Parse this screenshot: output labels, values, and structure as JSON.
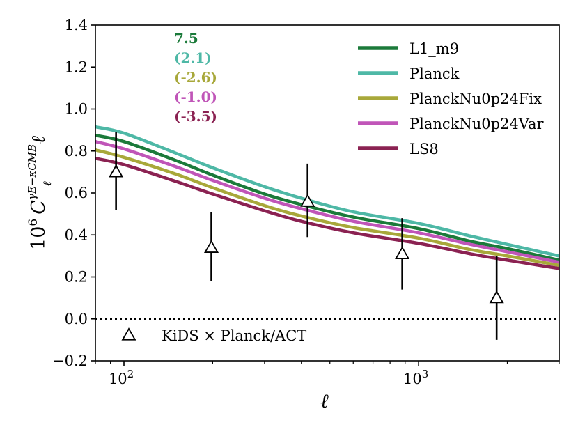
{
  "chart_data": {
    "type": "line",
    "xscale": "log",
    "xlim": [
      80,
      3000
    ],
    "ylim": [
      -0.2,
      1.4
    ],
    "xlabel": "ℓ",
    "ylabel": {
      "prefix": "10",
      "prefix_exp": "6",
      "symbol": "C",
      "sub": "ℓ",
      "sup": "γE−κCMB",
      "suffix": "ℓ"
    },
    "y_ticks": [
      -0.2,
      0.0,
      0.2,
      0.4,
      0.6,
      0.8,
      1.0,
      1.2,
      1.4
    ],
    "y_tick_labels": [
      "−0.2",
      "0.0",
      "0.2",
      "0.4",
      "0.6",
      "0.8",
      "1.0",
      "1.2",
      "1.4"
    ],
    "x_major_ticks": [
      100,
      1000
    ],
    "x_tick_labels": [
      {
        "base": "10",
        "exp": "2"
      },
      {
        "base": "10",
        "exp": "3"
      }
    ],
    "x_minor_ticks": [
      80,
      90,
      200,
      300,
      400,
      500,
      600,
      700,
      800,
      900,
      2000,
      3000
    ],
    "zero_line": 0.0,
    "series": [
      {
        "name": "L1_m9",
        "color": "#1b7a3a",
        "x": [
          80,
          100,
          150,
          200,
          300,
          400,
          600,
          1000,
          1500,
          2000,
          3000
        ],
        "y": [
          0.875,
          0.845,
          0.755,
          0.685,
          0.595,
          0.545,
          0.485,
          0.43,
          0.37,
          0.335,
          0.28
        ]
      },
      {
        "name": "Planck",
        "color": "#4eb8a6",
        "x": [
          80,
          100,
          150,
          200,
          300,
          400,
          600,
          1000,
          1500,
          2000,
          3000
        ],
        "y": [
          0.915,
          0.885,
          0.79,
          0.72,
          0.63,
          0.575,
          0.51,
          0.455,
          0.395,
          0.355,
          0.3
        ]
      },
      {
        "name": "PlanckNu0p24Fix",
        "color": "#a8a83a",
        "x": [
          80,
          100,
          150,
          200,
          300,
          400,
          600,
          1000,
          1500,
          2000,
          3000
        ],
        "y": [
          0.805,
          0.77,
          0.69,
          0.625,
          0.54,
          0.49,
          0.435,
          0.385,
          0.33,
          0.3,
          0.255
        ]
      },
      {
        "name": "PlanckNu0p24Var",
        "color": "#c055b8",
        "x": [
          80,
          100,
          150,
          200,
          300,
          400,
          600,
          1000,
          1500,
          2000,
          3000
        ],
        "y": [
          0.845,
          0.81,
          0.725,
          0.66,
          0.575,
          0.525,
          0.465,
          0.41,
          0.355,
          0.32,
          0.27
        ]
      },
      {
        "name": "LS8",
        "color": "#8b2252",
        "x": [
          80,
          100,
          150,
          200,
          300,
          400,
          600,
          1000,
          1500,
          2000,
          3000
        ],
        "y": [
          0.765,
          0.735,
          0.655,
          0.595,
          0.515,
          0.465,
          0.41,
          0.36,
          0.31,
          0.28,
          0.24
        ]
      }
    ],
    "data_points": {
      "name": "KiDS × Planck/ACT",
      "x": [
        94,
        198,
        420,
        880,
        1840
      ],
      "y": [
        0.7,
        0.34,
        0.56,
        0.31,
        0.1
      ],
      "yerr_low": [
        0.18,
        0.16,
        0.17,
        0.17,
        0.2
      ],
      "yerr_high": [
        0.19,
        0.17,
        0.18,
        0.17,
        0.2
      ]
    },
    "annotations": [
      {
        "text": "7.5",
        "color": "#1b7a3a"
      },
      {
        "text": "(2.1)",
        "color": "#4eb8a6"
      },
      {
        "text": "(-2.6)",
        "color": "#a8a83a"
      },
      {
        "text": "(-1.0)",
        "color": "#c055b8"
      },
      {
        "text": "(-3.5)",
        "color": "#8b2252"
      }
    ],
    "legend_position": "top-right",
    "points_legend_position": "bottom-left"
  }
}
